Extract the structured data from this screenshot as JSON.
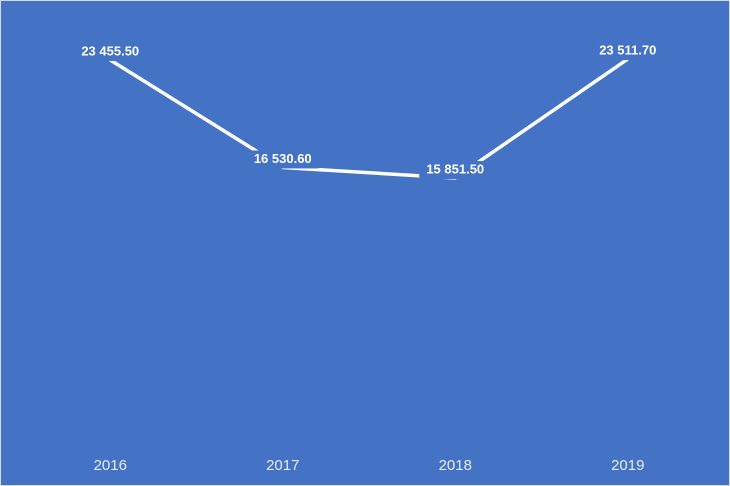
{
  "chart_data": {
    "type": "line",
    "categories": [
      "2016",
      "2017",
      "2018",
      "2019"
    ],
    "values": [
      23455.5,
      16530.6,
      15851.5,
      23511.7
    ],
    "value_labels": [
      "23 455.50",
      "16 530.60",
      "15 851.50",
      "23 511.70"
    ],
    "color": "#ffffff",
    "ylim": [
      0,
      25000
    ]
  }
}
